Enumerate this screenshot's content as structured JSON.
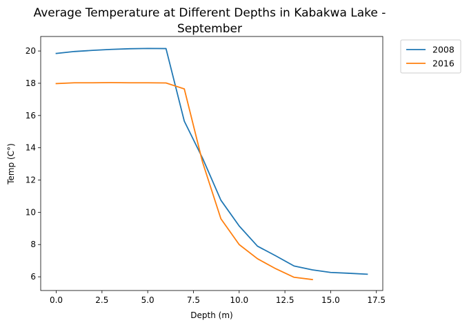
{
  "chart_data": {
    "type": "line",
    "title": "Average Temperature at Different Depths in Kabakwa Lake -",
    "title_line2": "September",
    "xlabel": "Depth (m)",
    "ylabel": "Temp (C°)",
    "xlim": [
      -0.85,
      17.85
    ],
    "ylim": [
      5.15,
      20.9
    ],
    "xticks": [
      0.0,
      2.5,
      5.0,
      7.5,
      10.0,
      12.5,
      15.0,
      17.5
    ],
    "xtick_labels": [
      "0.0",
      "2.5",
      "5.0",
      "7.5",
      "10.0",
      "12.5",
      "15.0",
      "17.5"
    ],
    "yticks": [
      6,
      8,
      10,
      12,
      14,
      16,
      18,
      20
    ],
    "ytick_labels": [
      "6",
      "8",
      "10",
      "12",
      "14",
      "16",
      "18",
      "20"
    ],
    "grid": false,
    "legend_position": "outside-top-right",
    "series": [
      {
        "name": "2008",
        "color": "#1f77b4",
        "x": [
          0,
          1,
          2,
          3,
          4,
          5,
          6,
          7,
          8,
          9,
          10,
          11,
          12,
          13,
          14,
          15,
          16,
          17
        ],
        "y": [
          19.85,
          19.97,
          20.04,
          20.1,
          20.14,
          20.16,
          20.15,
          15.65,
          13.35,
          10.75,
          9.15,
          7.9,
          7.3,
          6.67,
          6.43,
          6.27,
          6.22,
          6.16
        ]
      },
      {
        "name": "2016",
        "color": "#ff7f0e",
        "x": [
          0,
          1,
          2,
          3,
          4,
          5,
          6,
          7,
          8,
          9,
          10,
          11,
          12,
          13,
          14
        ],
        "y": [
          17.98,
          18.03,
          18.03,
          18.04,
          18.03,
          18.03,
          18.02,
          17.65,
          13.1,
          9.6,
          8.0,
          7.12,
          6.5,
          5.97,
          5.83
        ]
      }
    ]
  }
}
